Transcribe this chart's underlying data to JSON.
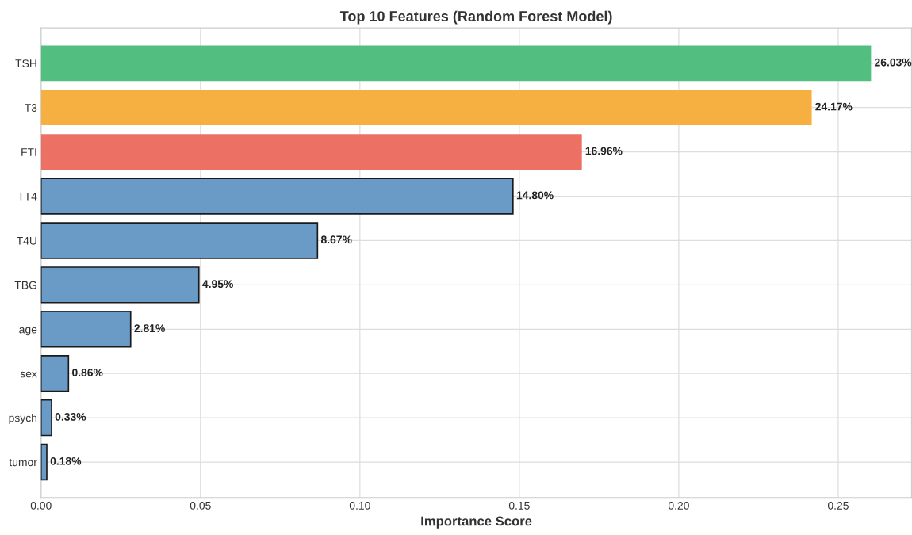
{
  "chart_data": {
    "type": "bar",
    "orientation": "horizontal",
    "title": "Top 10 Features (Random Forest Model)",
    "xlabel": "Importance Score",
    "categories": [
      "TSH",
      "T3",
      "FTI",
      "TT4",
      "T4U",
      "TBG",
      "age",
      "sex",
      "psych",
      "tumor"
    ],
    "values": [
      0.2603,
      0.2417,
      0.1696,
      0.148,
      0.0867,
      0.0495,
      0.0281,
      0.0086,
      0.0033,
      0.0018
    ],
    "colors": [
      "#52be80",
      "#f5b041",
      "#ec7063",
      "#6a9bc6",
      "#6a9bc6",
      "#6a9bc6",
      "#6a9bc6",
      "#6a9bc6",
      "#6a9bc6",
      "#6a9bc6"
    ],
    "value_labels": [
      "26.03%",
      "24.17%",
      "16.96%",
      "14.80%",
      "8.67%",
      "4.95%",
      "2.81%",
      "0.86%",
      "0.33%",
      "0.18%"
    ],
    "xlim": [
      0,
      0.273
    ],
    "xticks": [
      {
        "value": 0,
        "label": "0.00"
      },
      0.05,
      {
        "value": 0.1,
        "label": "0.10"
      },
      0.15,
      {
        "value": 0.2,
        "label": "0.20"
      },
      0.25
    ],
    "grid": true,
    "legend": false
  }
}
